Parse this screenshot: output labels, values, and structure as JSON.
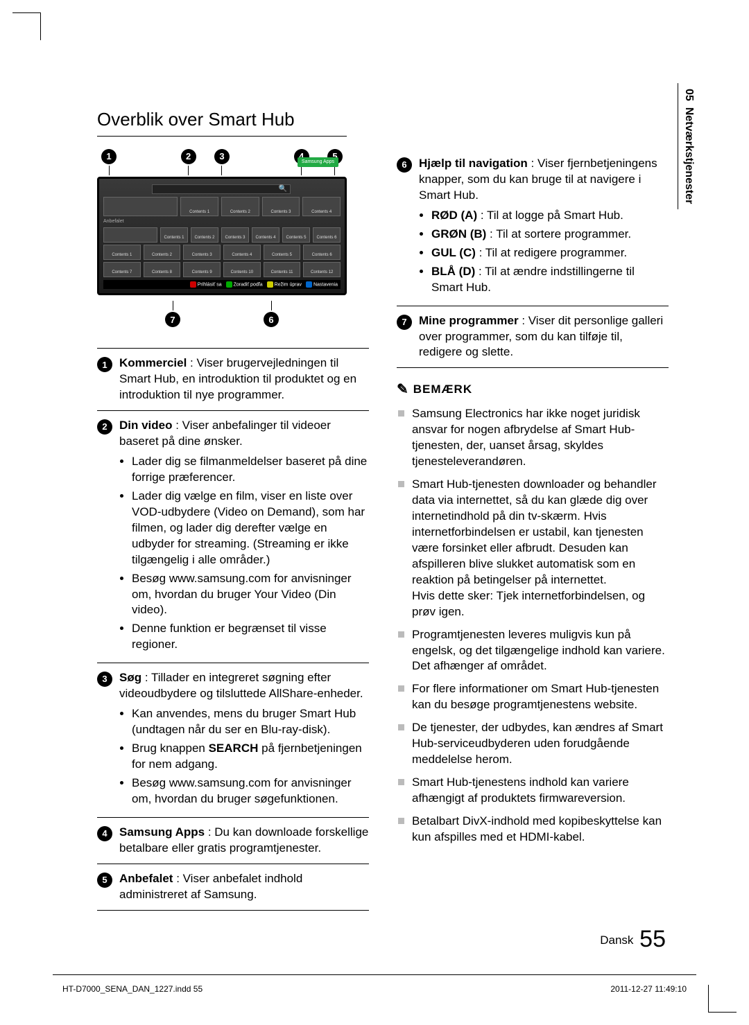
{
  "chapter": {
    "number": "05",
    "title": "Netværkstjenester"
  },
  "heading": "Overblik over Smart Hub",
  "screenshot": {
    "apps_button": "Samsung Apps",
    "section_label": "Anbefalet",
    "contents_prefix": "Contents",
    "bottom_bar": {
      "a": "Prihlásiť sa",
      "b": "Zoradiť podľa",
      "c": "Režim úprav",
      "d": "Nastavenia"
    },
    "colors": {
      "A": "#cc0000",
      "B": "#00aa00",
      "C": "#cccc00",
      "D": "#0066cc"
    }
  },
  "callouts_top": [
    "1",
    "2",
    "3",
    "4",
    "5"
  ],
  "callouts_bottom": [
    "7",
    "6"
  ],
  "items_left": [
    {
      "n": "1",
      "label": "Kommerciel",
      "text": " : Viser brugervejledningen til Smart Hub, en introduktion til produktet og en introduktion til nye programmer."
    },
    {
      "n": "2",
      "label": "Din video",
      "text": " : Viser anbefalinger til videoer baseret på dine ønsker.",
      "bullets": [
        "Lader dig se filmanmeldelser baseret på dine forrige præferencer.",
        "Lader dig vælge en film, viser en liste over VOD-udbydere (Video on Demand), som har filmen, og lader dig derefter vælge en udbyder for streaming. (Streaming er ikke tilgængelig i alle områder.)",
        "Besøg www.samsung.com for anvisninger om, hvordan du bruger Your Video (Din video).",
        "Denne funktion er begrænset til visse regioner."
      ]
    },
    {
      "n": "3",
      "label": "Søg",
      "text": " : Tillader en integreret søgning efter videoudbydere og tilsluttede AllShare-enheder.",
      "bullets": [
        "Kan anvendes, mens du bruger Smart Hub (undtagen når du ser en Blu-ray-disk).",
        "Brug knappen SEARCH på fjernbetjeningen for nem adgang.",
        "Besøg www.samsung.com for anvisninger om, hvordan du bruger søgefunktionen."
      ],
      "bold_in_bullet": {
        "index": 1,
        "word": "SEARCH"
      }
    },
    {
      "n": "4",
      "label": "Samsung Apps",
      "text": " : Du kan downloade forskellige betalbare eller gratis programtjenester."
    },
    {
      "n": "5",
      "label": "Anbefalet",
      "text": " : Viser anbefalet indhold administreret af Samsung."
    }
  ],
  "items_right": [
    {
      "n": "6",
      "pre": {
        "label": "Hjælp til navigation",
        "text": " : Viser fjernbetjeningens knapper, som du kan bruge til at navigere i Smart Hub."
      },
      "bullets": [
        {
          "strong": "RØD (A)",
          "rest": " : Til at logge på Smart Hub."
        },
        {
          "strong": "GRØN (B)",
          "rest": " : Til at sortere programmer."
        },
        {
          "strong": "GUL (C)",
          "rest": " : Til at redigere programmer."
        },
        {
          "strong": "BLÅ (D)",
          "rest": " : Til at ændre indstillingerne til Smart Hub."
        }
      ]
    },
    {
      "n": "7",
      "label": "Mine programmer",
      "text": " : Viser dit personlige galleri over programmer, som du kan tilføje til, redigere og slette."
    }
  ],
  "note_heading": "BEMÆRK",
  "notes": [
    "Samsung Electronics har ikke noget juridisk ansvar for nogen afbrydelse af Smart Hub-tjenesten, der, uanset årsag, skyldes tjenesteleverandøren.",
    "Smart Hub-tjenesten downloader og behandler data via internettet, så du kan glæde dig over internetindhold på din tv-skærm. Hvis internetforbindelsen er ustabil, kan tjenesten være forsinket eller afbrudt. Desuden kan afspilleren blive slukket automatisk som en reaktion på betingelser på internettet.\nHvis dette sker: Tjek internetforbindelsen, og prøv igen.",
    "Programtjenesten leveres muligvis kun på engelsk, og det tilgængelige indhold kan variere. Det afhænger af området.",
    "For flere informationer om Smart Hub-tjenesten kan du besøge programtjenestens website.",
    "De tjenester, der udbydes, kan ændres af Smart Hub-serviceudbyderen uden forudgående meddelelse herom.",
    "Smart Hub-tjenestens indhold kan variere afhængigt af produktets firmwareversion.",
    "Betalbart DivX-indhold med kopibeskyttelse kan kun afspilles med et HDMI-kabel."
  ],
  "footer": {
    "lang": "Dansk",
    "page": "55",
    "file": "HT-D7000_SENA_DAN_1227.indd   55",
    "datetime": "2011-12-27   11:49:10"
  }
}
